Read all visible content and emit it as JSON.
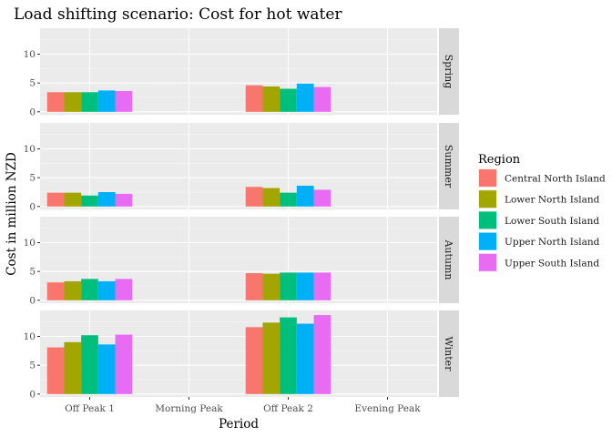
{
  "chart_data": {
    "type": "bar",
    "title": "Load shifting scenario: Cost for hot water",
    "xlabel": "Period",
    "ylabel": "Cost in million NZD",
    "ylim": [
      -0.5,
      14.5
    ],
    "yticks": [
      0,
      5,
      10
    ],
    "grid": true,
    "legend_placement": "right",
    "legend_title": "Region",
    "categories": [
      "Off Peak 1",
      "Morning Peak",
      "Off Peak 2",
      "Evening Peak"
    ],
    "series": [
      {
        "name": "Central North Island",
        "color": "#F8766D"
      },
      {
        "name": "Lower North Island",
        "color": "#A3A500"
      },
      {
        "name": "Lower South Island",
        "color": "#00BF7D"
      },
      {
        "name": "Upper North Island",
        "color": "#00B0F6"
      },
      {
        "name": "Upper South Island",
        "color": "#E76BF3"
      }
    ],
    "facets": [
      {
        "label": "Spring",
        "values": {
          "Off Peak 1": [
            3.4,
            3.4,
            3.4,
            3.7,
            3.6
          ],
          "Off Peak 2": [
            4.6,
            4.4,
            4.0,
            4.9,
            4.3
          ]
        }
      },
      {
        "label": "Summer",
        "values": {
          "Off Peak 1": [
            2.4,
            2.4,
            1.9,
            2.5,
            2.2
          ],
          "Off Peak 2": [
            3.4,
            3.2,
            2.4,
            3.6,
            2.9
          ]
        }
      },
      {
        "label": "Autumn",
        "values": {
          "Off Peak 1": [
            3.1,
            3.3,
            3.7,
            3.3,
            3.7
          ],
          "Off Peak 2": [
            4.7,
            4.6,
            4.8,
            4.8,
            4.8
          ]
        }
      },
      {
        "label": "Winter",
        "values": {
          "Off Peak 1": [
            8.1,
            9.0,
            10.2,
            8.6,
            10.3
          ],
          "Off Peak 2": [
            11.6,
            12.4,
            13.3,
            12.2,
            13.7
          ]
        }
      }
    ]
  }
}
